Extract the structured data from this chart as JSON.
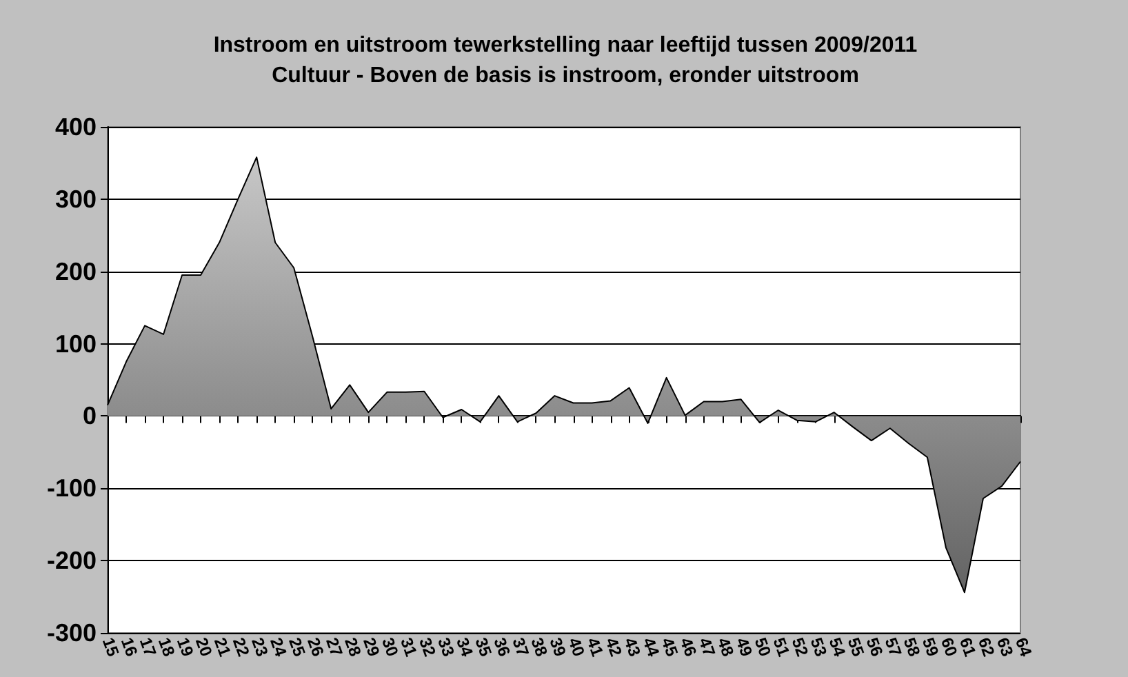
{
  "chart_data": {
    "type": "area",
    "title": "Instroom en uitstroom tewerkstelling naar leeftijd tussen 2009/2011",
    "subtitle": "Cultuur - Boven de basis is instroom, eronder uitstroom",
    "categories": [
      "15",
      "16",
      "17",
      "18",
      "19",
      "20",
      "21",
      "22",
      "23",
      "24",
      "25",
      "26",
      "27",
      "28",
      "29",
      "30",
      "31",
      "32",
      "33",
      "34",
      "35",
      "36",
      "37",
      "38",
      "39",
      "40",
      "41",
      "42",
      "43",
      "44",
      "45",
      "46",
      "47",
      "48",
      "49",
      "50",
      "51",
      "52",
      "53",
      "54",
      "55",
      "56",
      "57",
      "58",
      "59",
      "60",
      "61",
      "62",
      "63",
      "64"
    ],
    "series": [
      {
        "color": "#b4b4b4",
        "values": [
          15,
          75,
          125,
          113,
          195,
          195,
          240,
          300,
          358,
          240,
          205,
          110,
          10,
          43,
          5,
          33,
          33,
          34,
          -2,
          9,
          -8,
          28,
          -8,
          4,
          28,
          18,
          18,
          21,
          39,
          -10,
          53,
          1,
          20,
          20,
          23,
          -9,
          8,
          -6,
          -8,
          5,
          -15,
          -34,
          -17,
          -38,
          -57,
          -182,
          -244,
          -114,
          -97,
          -63
        ]
      }
    ],
    "ylim": [
      -300,
      400
    ],
    "yticks": [
      -300,
      -200,
      -100,
      0,
      100,
      200,
      300,
      400
    ],
    "grid": "y"
  }
}
